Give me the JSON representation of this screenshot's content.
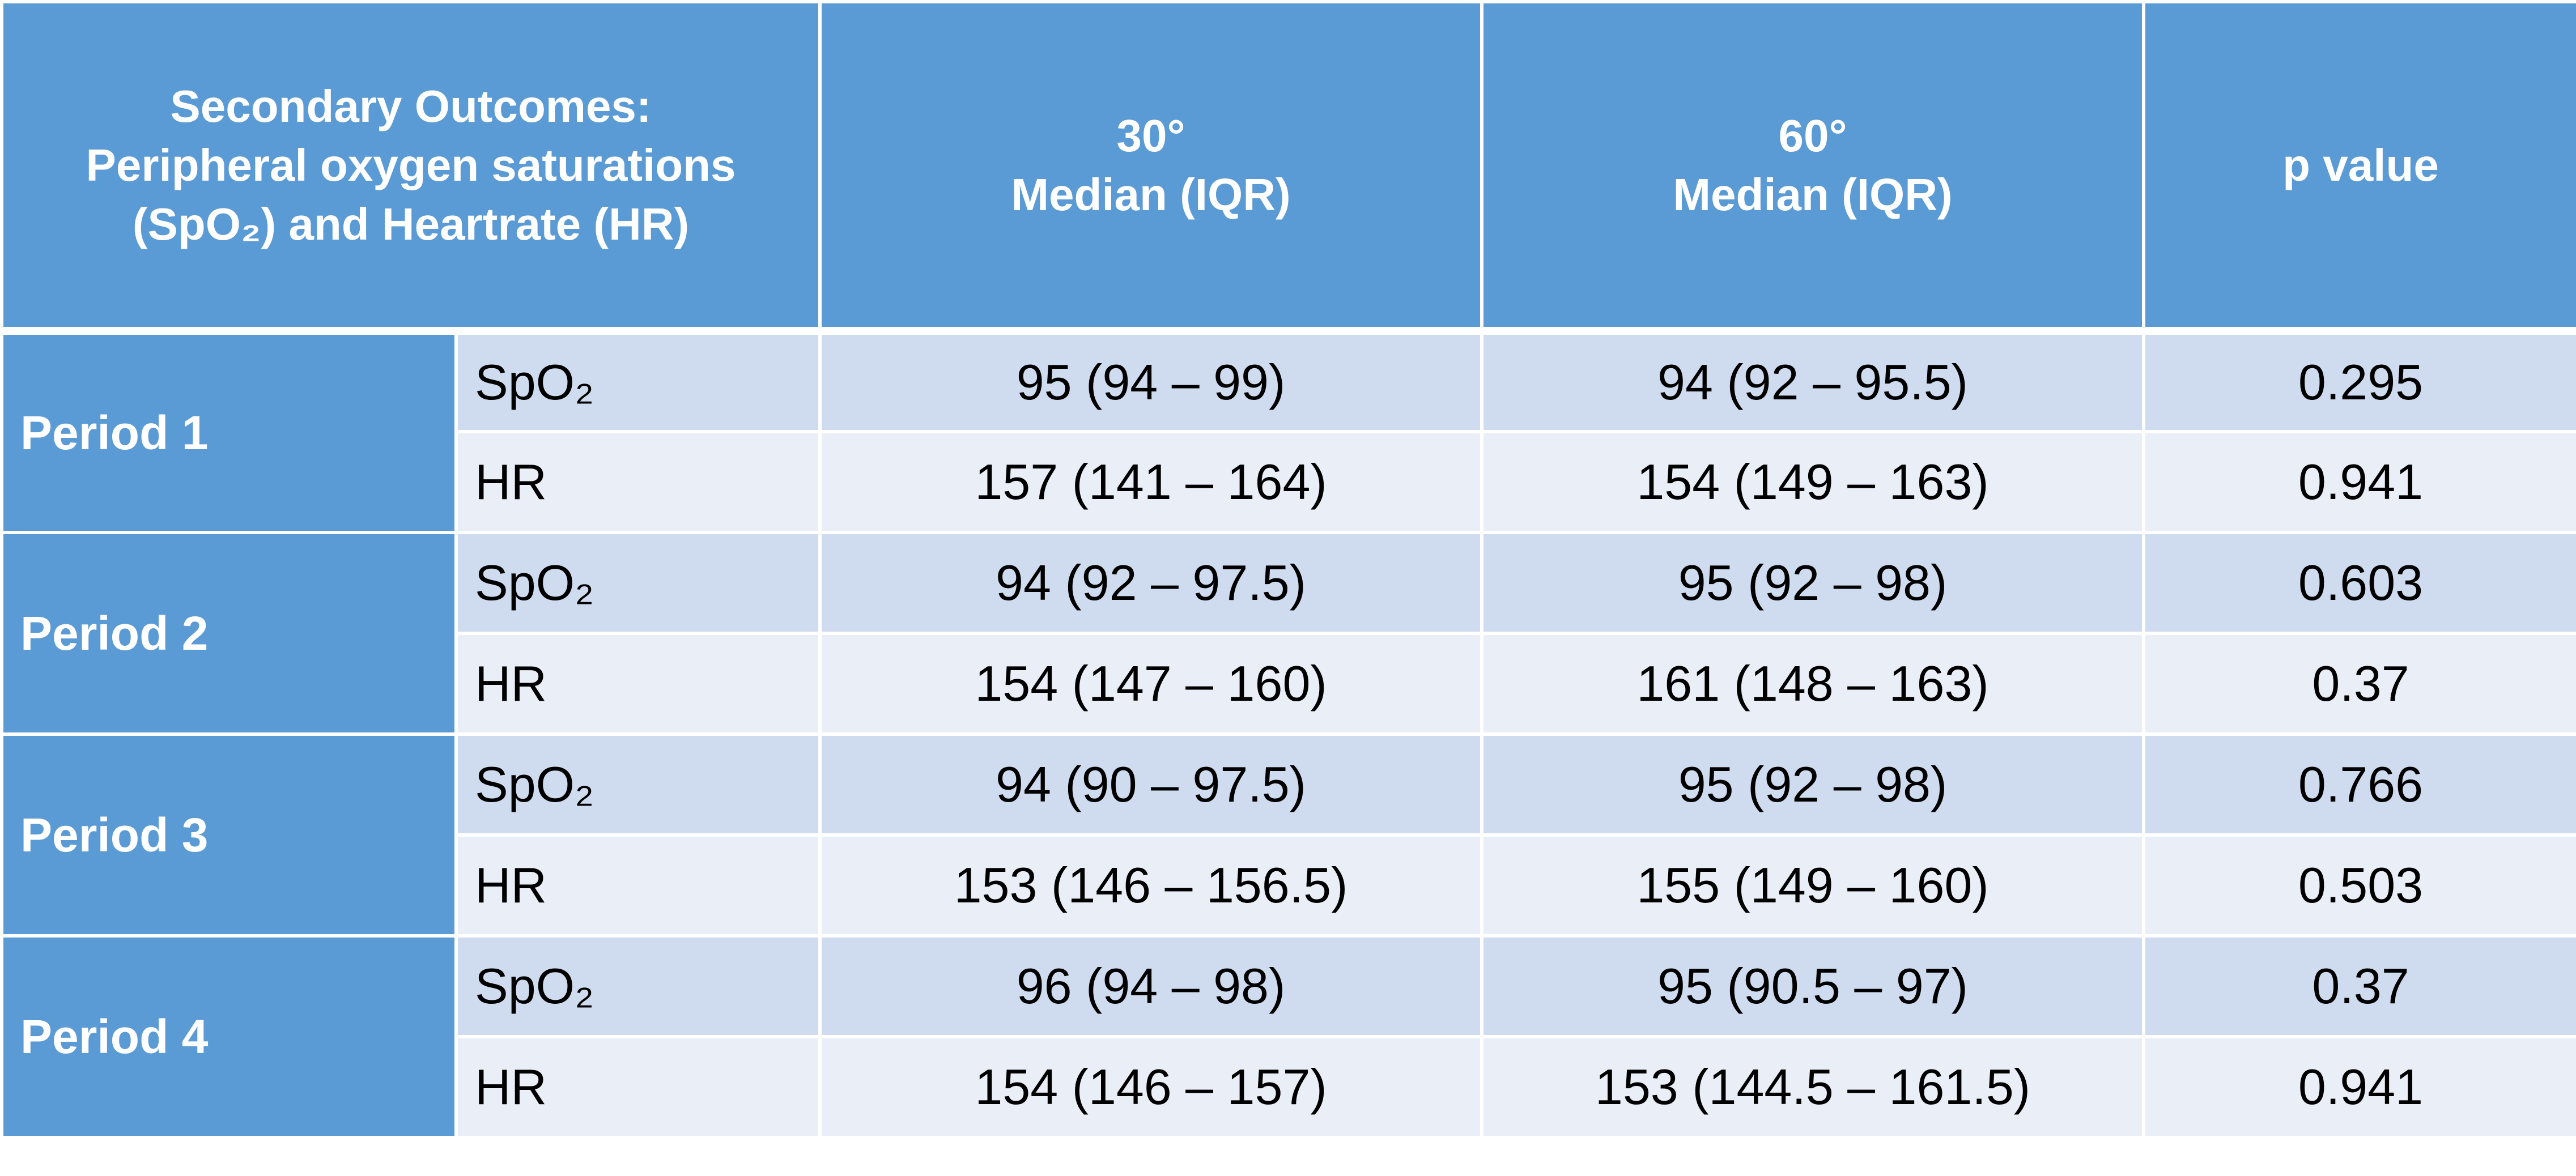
{
  "header": [
    {
      "lines": [
        "Secondary Outcomes:",
        "Peripheral oxygen saturations",
        "(SpO₂) and Heartrate (HR)"
      ]
    },
    {
      "lines": [
        "30°",
        "Median (IQR)"
      ]
    },
    {
      "lines": [
        "60°",
        "Median (IQR)"
      ]
    },
    {
      "lines": [
        "p value"
      ]
    }
  ],
  "periods": [
    {
      "label": "Period 1",
      "rows": [
        [
          "SpO₂",
          "95 (94 – 99)",
          "94 (92 – 95.5)",
          "0.295"
        ],
        [
          "HR",
          "157 (141 – 164)",
          "154 (149 – 163)",
          "0.941"
        ]
      ]
    },
    {
      "label": "Period 2",
      "rows": [
        [
          "SpO₂",
          "94 (92 – 97.5)",
          "95 (92 – 98)",
          "0.603"
        ],
        [
          "HR",
          "154 (147 – 160)",
          "161 (148 – 163)",
          "0.37"
        ]
      ]
    },
    {
      "label": "Period 3",
      "rows": [
        [
          "SpO₂",
          "94 (90 – 97.5)",
          "95 (92 – 98)",
          "0.766"
        ],
        [
          "HR",
          "153 (146 – 156.5)",
          "155 (149 – 160)",
          "0.503"
        ]
      ]
    },
    {
      "label": "Period 4",
      "rows": [
        [
          "SpO₂",
          "96 (94 – 98)",
          "95 (90.5 – 97)",
          "0.37"
        ],
        [
          "HR",
          "154 (146 – 157)",
          "153 (144.5 – 161.5)",
          "0.941"
        ]
      ]
    }
  ]
}
